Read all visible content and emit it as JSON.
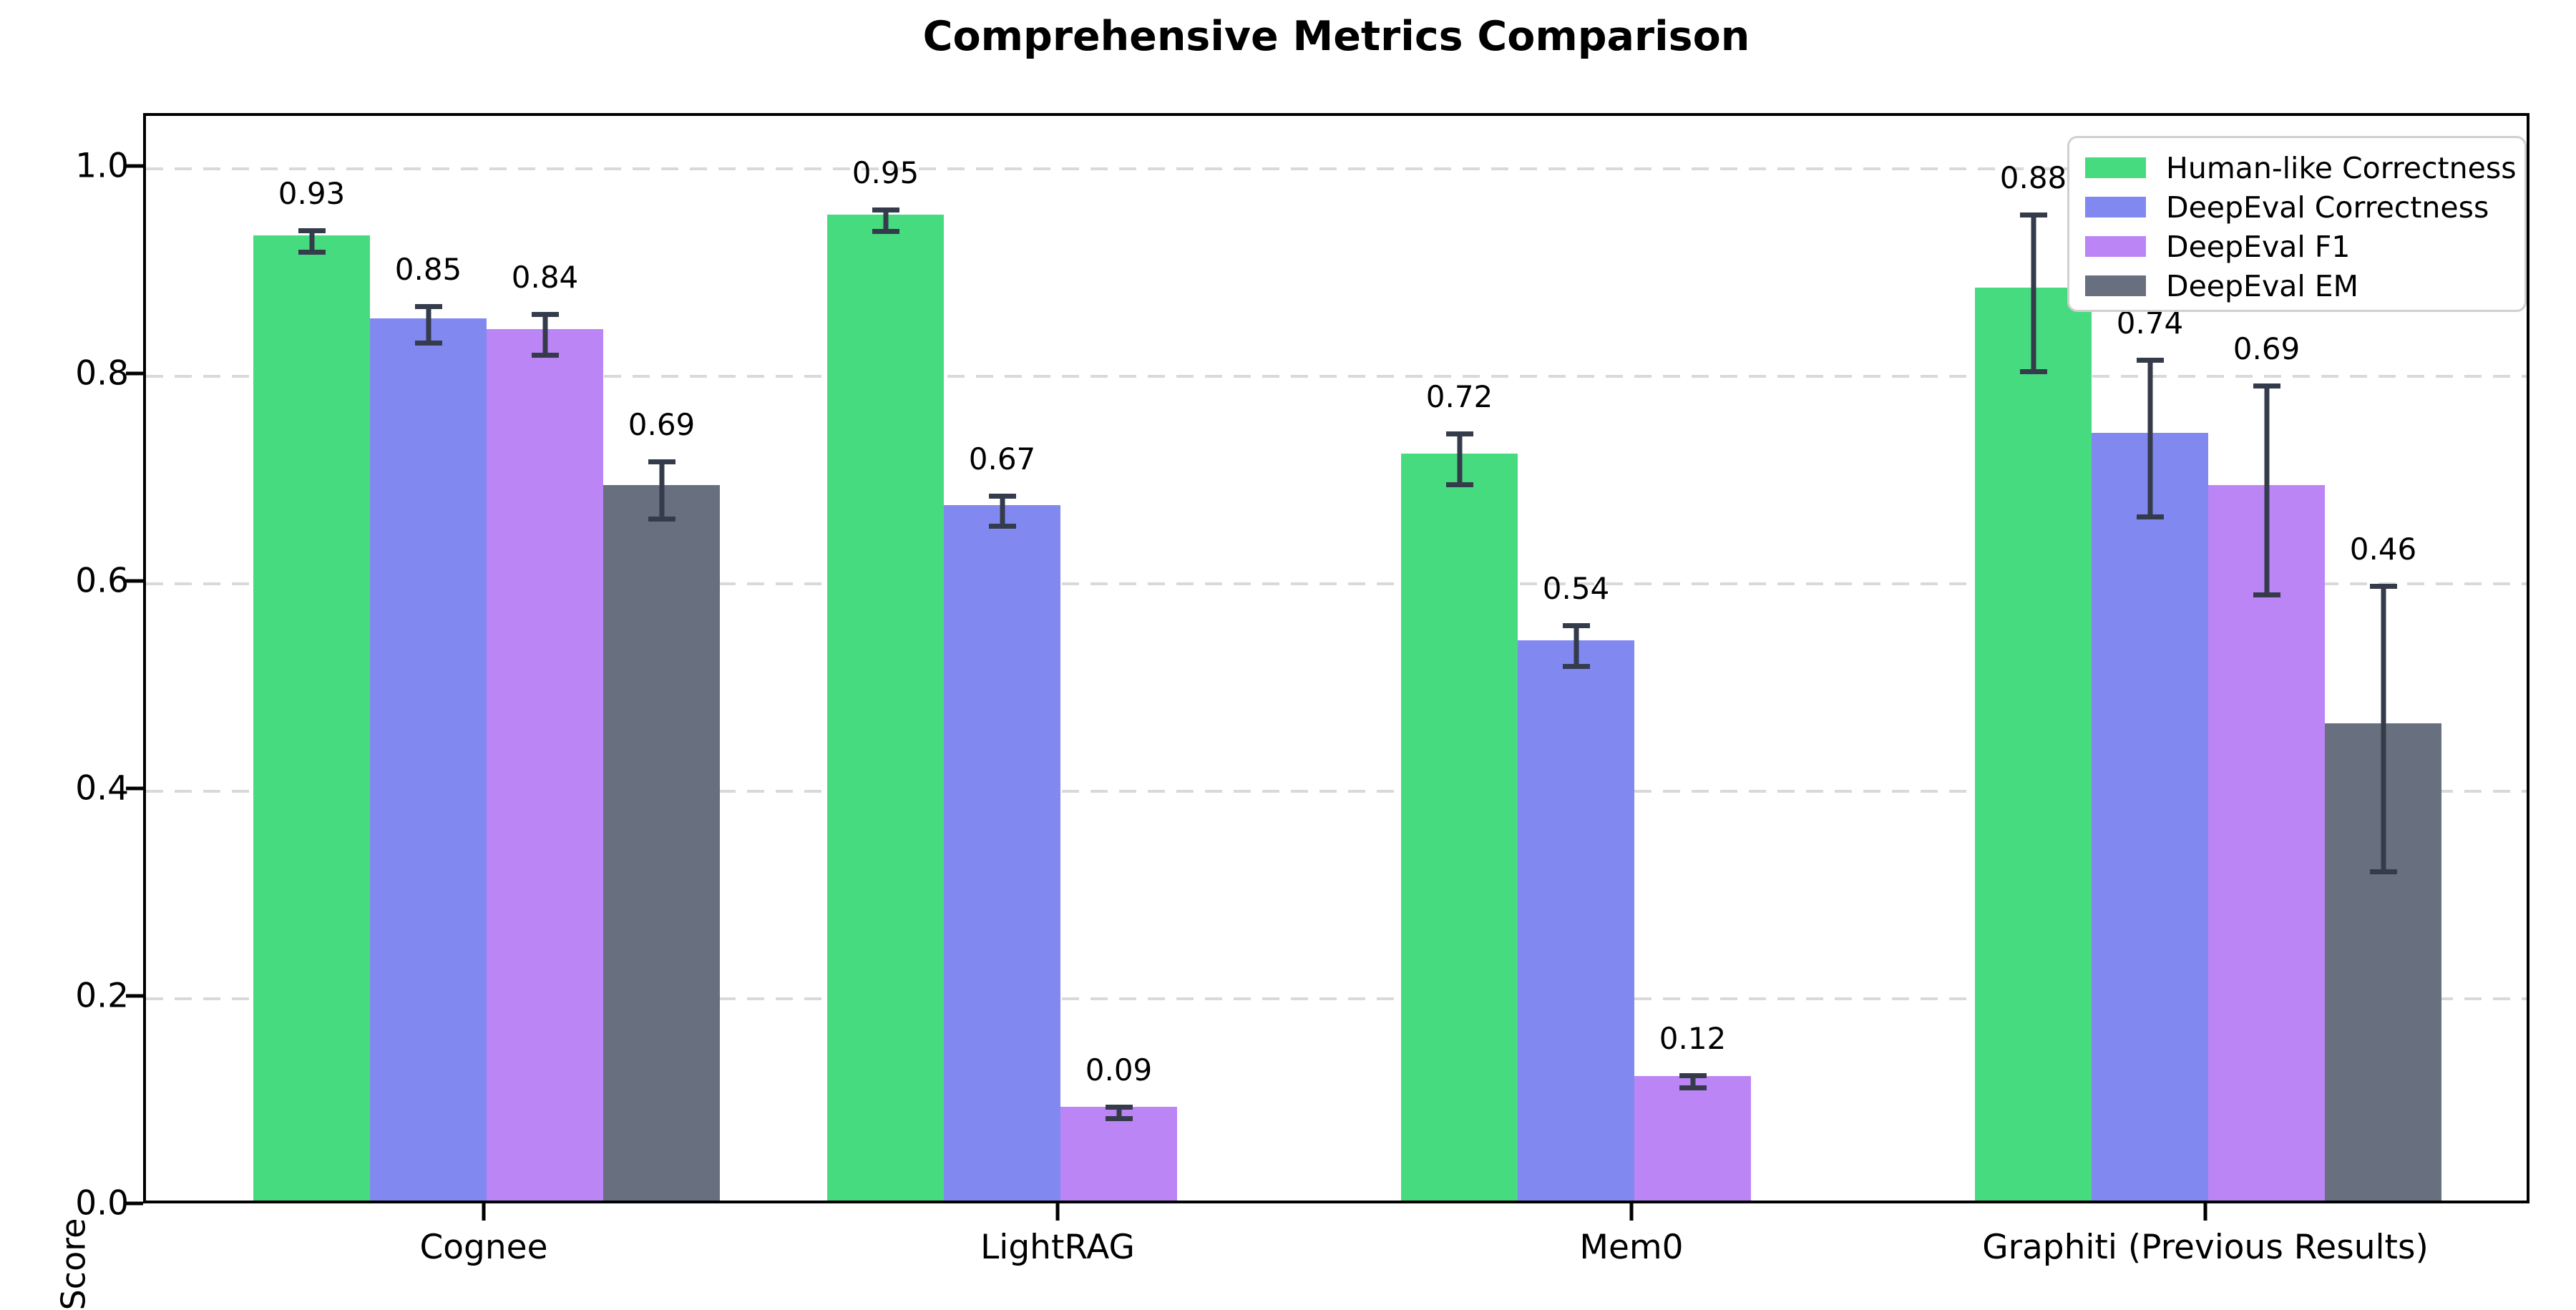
{
  "chart_data": {
    "type": "bar",
    "title": "Comprehensive Metrics Comparison",
    "ylabel": "Score",
    "xlabel": "",
    "ylim": [
      0,
      1.051
    ],
    "yticks": [
      "0.0",
      "0.2",
      "0.4",
      "0.6",
      "0.8",
      "1.0"
    ],
    "ytick_values": [
      0.0,
      0.2,
      0.4,
      0.6,
      0.8,
      1.0
    ],
    "grid": "horizontal dashed, behind bars",
    "legend_position": "upper right",
    "categories": [
      "Cognee",
      "LightRAG",
      "Mem0",
      "Graphiti (Previous Results)"
    ],
    "series": [
      {
        "name": "Human-like Correctness",
        "color": "#47db80",
        "values": [
          0.93,
          0.95,
          0.72,
          0.88
        ],
        "errors": [
          0.013,
          0.013,
          0.027,
          0.078
        ],
        "labels": [
          "0.93",
          "0.95",
          "0.72",
          "0.88"
        ]
      },
      {
        "name": "DeepEval Correctness",
        "color": "#8189f0",
        "values": [
          0.85,
          0.67,
          0.54,
          0.74
        ],
        "errors": [
          0.02,
          0.017,
          0.022,
          0.078
        ],
        "labels": [
          "0.85",
          "0.67",
          "0.54",
          "0.74"
        ]
      },
      {
        "name": "DeepEval F1",
        "color": "#bc85f5",
        "values": [
          0.84,
          0.09,
          0.12,
          0.69
        ],
        "errors": [
          0.022,
          0.008,
          0.008,
          0.103
        ],
        "labels": [
          "0.84",
          "0.09",
          "0.12",
          "0.69"
        ]
      },
      {
        "name": "DeepEval EM",
        "color": "#68707f",
        "values": [
          0.69,
          0.0,
          0.0,
          0.46
        ],
        "errors": [
          0.03,
          0.004,
          0.004,
          0.14
        ],
        "labels": [
          "0.69",
          "",
          "",
          "0.46"
        ]
      }
    ],
    "errorbar_color": "#343b4b",
    "grid_color": "#d9d9d9",
    "spine_color": "#000000",
    "background_color": "#ffffff"
  }
}
